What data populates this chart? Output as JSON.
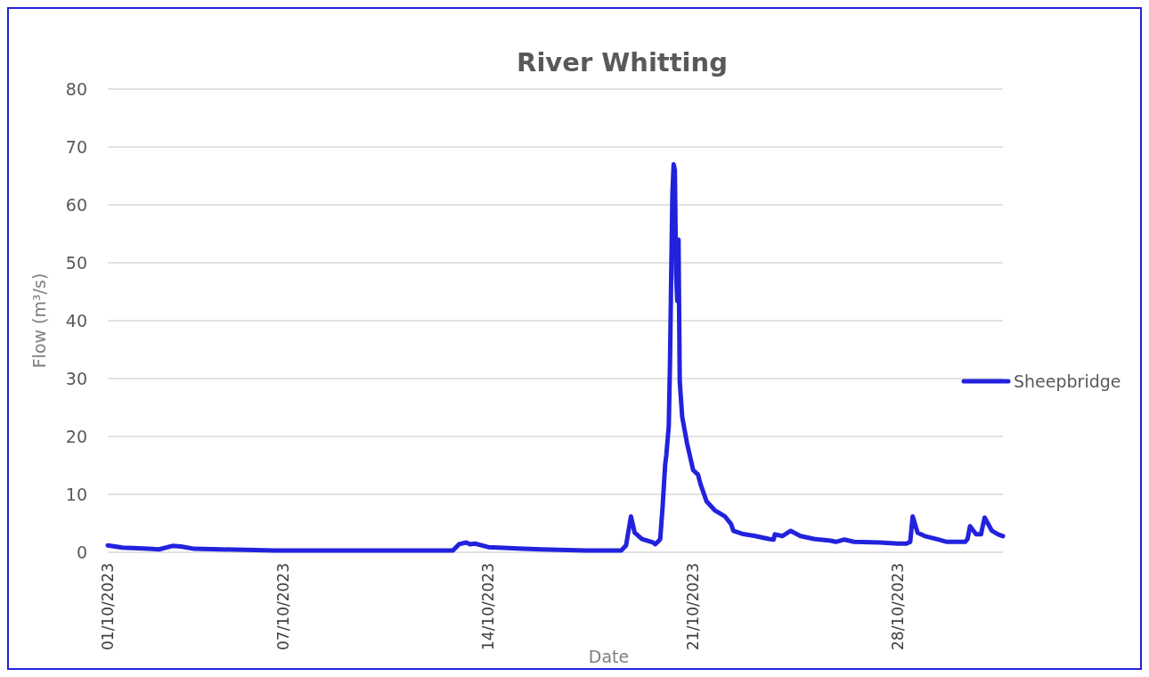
{
  "chart_data": {
    "type": "line",
    "title": "River Whitting",
    "xlabel": "Date",
    "ylabel": "Flow (m³/s)",
    "ylim": [
      0,
      80
    ],
    "yticks": [
      0,
      10,
      20,
      30,
      40,
      50,
      60,
      70,
      80
    ],
    "xlim": [
      "2023-10-01",
      "2023-10-31T14:00"
    ],
    "xticks": [
      {
        "value": "2023-10-01",
        "label": "01/10/2023"
      },
      {
        "value": "2023-10-07",
        "label": "07/10/2023"
      },
      {
        "value": "2023-10-14",
        "label": "14/10/2023"
      },
      {
        "value": "2023-10-21",
        "label": "21/10/2023"
      },
      {
        "value": "2023-10-28",
        "label": "28/10/2023"
      }
    ],
    "grid": "y",
    "legend": "right",
    "series": [
      {
        "name": "Sheepbridge",
        "color": "#2222dd",
        "x": [
          "2023-10-01T00:00",
          "2023-10-01T12:00",
          "2023-10-02T10:00",
          "2023-10-02T18:00",
          "2023-10-03T05:00",
          "2023-10-03T12:00",
          "2023-10-03T23:00",
          "2023-10-04T21:00",
          "2023-10-06T17:00",
          "2023-10-09T18:00",
          "2023-10-12T19:00",
          "2023-10-13T00:00",
          "2023-10-13T06:00",
          "2023-10-13T09:00",
          "2023-10-13T13:00",
          "2023-10-14T00:00",
          "2023-10-15T05:00",
          "2023-10-15T20:00",
          "2023-10-17T08:00",
          "2023-10-18T13:00",
          "2023-10-18T17:00",
          "2023-10-18T21:00",
          "2023-10-19T00:00",
          "2023-10-19T06:00",
          "2023-10-19T15:00",
          "2023-10-19T17:00",
          "2023-10-19T19:00",
          "2023-10-19T21:00",
          "2023-10-19T23:00",
          "2023-10-20T01:00",
          "2023-10-20T02:00",
          "2023-10-20T04:00",
          "2023-10-20T05:00",
          "2023-10-20T06:00",
          "2023-10-20T07:00",
          "2023-10-20T08:00",
          "2023-10-20T09:00",
          "2023-10-20T10:00",
          "2023-10-20T11:00",
          "2023-10-20T12:00",
          "2023-10-20T13:00",
          "2023-10-20T15:00",
          "2023-10-20T19:00",
          "2023-10-21T00:00",
          "2023-10-21T04:00",
          "2023-10-21T06:00",
          "2023-10-21T11:00",
          "2023-10-21T18:00",
          "2023-10-22T02:00",
          "2023-10-22T07:00",
          "2023-10-22T09:00",
          "2023-10-22T16:00",
          "2023-10-23T03:00",
          "2023-10-23T14:00",
          "2023-10-23T18:00",
          "2023-10-23T19:00",
          "2023-10-24T01:00",
          "2023-10-24T08:00",
          "2023-10-24T16:00",
          "2023-10-25T03:00",
          "2023-10-25T17:00",
          "2023-10-25T21:00",
          "2023-10-26T04:00",
          "2023-10-26T12:00",
          "2023-10-27T09:00",
          "2023-10-28T00:00",
          "2023-10-28T07:00",
          "2023-10-28T10:00",
          "2023-10-28T12:00",
          "2023-10-28T16:00",
          "2023-10-28T22:00",
          "2023-10-29T09:00",
          "2023-10-29T16:00",
          "2023-10-30T07:00",
          "2023-10-30T09:00",
          "2023-10-30T11:00",
          "2023-10-30T16:00",
          "2023-10-30T20:00",
          "2023-10-30T23:00",
          "2023-10-31T05:00",
          "2023-10-31T10:00",
          "2023-10-31T14:00"
        ],
        "values": [
          1.2,
          0.8,
          0.6,
          0.5,
          1.1,
          1.0,
          0.6,
          0.5,
          0.3,
          0.3,
          0.3,
          1.4,
          1.7,
          1.4,
          1.5,
          0.9,
          0.6,
          0.5,
          0.3,
          0.3,
          1.2,
          6.2,
          3.4,
          2.3,
          1.7,
          1.4,
          1.8,
          2.3,
          8,
          15,
          16.8,
          21.8,
          32.6,
          48,
          62,
          67,
          66,
          48,
          43.4,
          54,
          29.5,
          23.4,
          18.8,
          14.2,
          13.4,
          11.8,
          8.8,
          7.2,
          6.2,
          4.9,
          3.7,
          3.2,
          2.8,
          2.3,
          2.2,
          3.1,
          2.8,
          3.7,
          2.8,
          2.3,
          2.0,
          1.8,
          2.2,
          1.8,
          1.7,
          1.5,
          1.5,
          1.8,
          6.2,
          3.4,
          2.8,
          2.2,
          1.8,
          1.8,
          2.3,
          4.5,
          3.1,
          3.1,
          6.0,
          3.7,
          3.1,
          2.8
        ]
      }
    ]
  }
}
